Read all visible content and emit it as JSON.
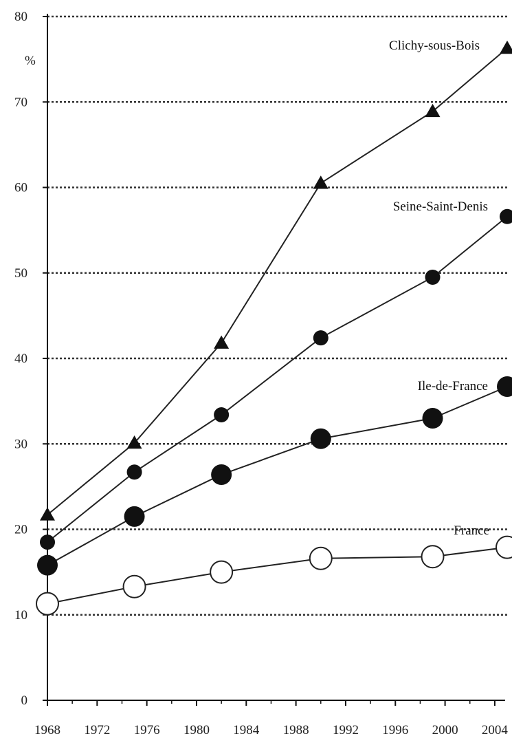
{
  "chart_data": {
    "type": "line",
    "title": "",
    "xlabel": "",
    "ylabel": "%",
    "xlim": [
      1968,
      2005
    ],
    "ylim": [
      0,
      80
    ],
    "x_ticks": [
      "1968",
      "1972",
      "1976",
      "1980",
      "1984",
      "1988",
      "1992",
      "1996",
      "2000",
      "2004"
    ],
    "y_ticks": [
      "0",
      "10",
      "20",
      "30",
      "40",
      "50",
      "60",
      "70",
      "80"
    ],
    "grid": "horizontal dotted",
    "series": [
      {
        "name": "Clichy-sous-Bois",
        "marker": "triangle",
        "x": [
          1968,
          1975,
          1982,
          1990,
          1999,
          2005
        ],
        "values": [
          21.7,
          30.1,
          41.8,
          60.5,
          68.9,
          76.3
        ]
      },
      {
        "name": "Seine-Saint-Denis",
        "marker": "small-filled-circle",
        "x": [
          1968,
          1975,
          1982,
          1990,
          1999,
          2005
        ],
        "values": [
          18.5,
          26.7,
          33.4,
          42.4,
          49.5,
          56.6
        ]
      },
      {
        "name": "Ile-de-France",
        "marker": "large-filled-circle",
        "x": [
          1968,
          1975,
          1982,
          1990,
          1999,
          2005
        ],
        "values": [
          15.8,
          21.5,
          26.4,
          30.6,
          33.0,
          36.7
        ]
      },
      {
        "name": "France",
        "marker": "open-circle",
        "x": [
          1968,
          1975,
          1982,
          1990,
          1999,
          2005
        ],
        "values": [
          11.3,
          13.3,
          15.0,
          16.6,
          16.8,
          17.9
        ]
      }
    ]
  }
}
